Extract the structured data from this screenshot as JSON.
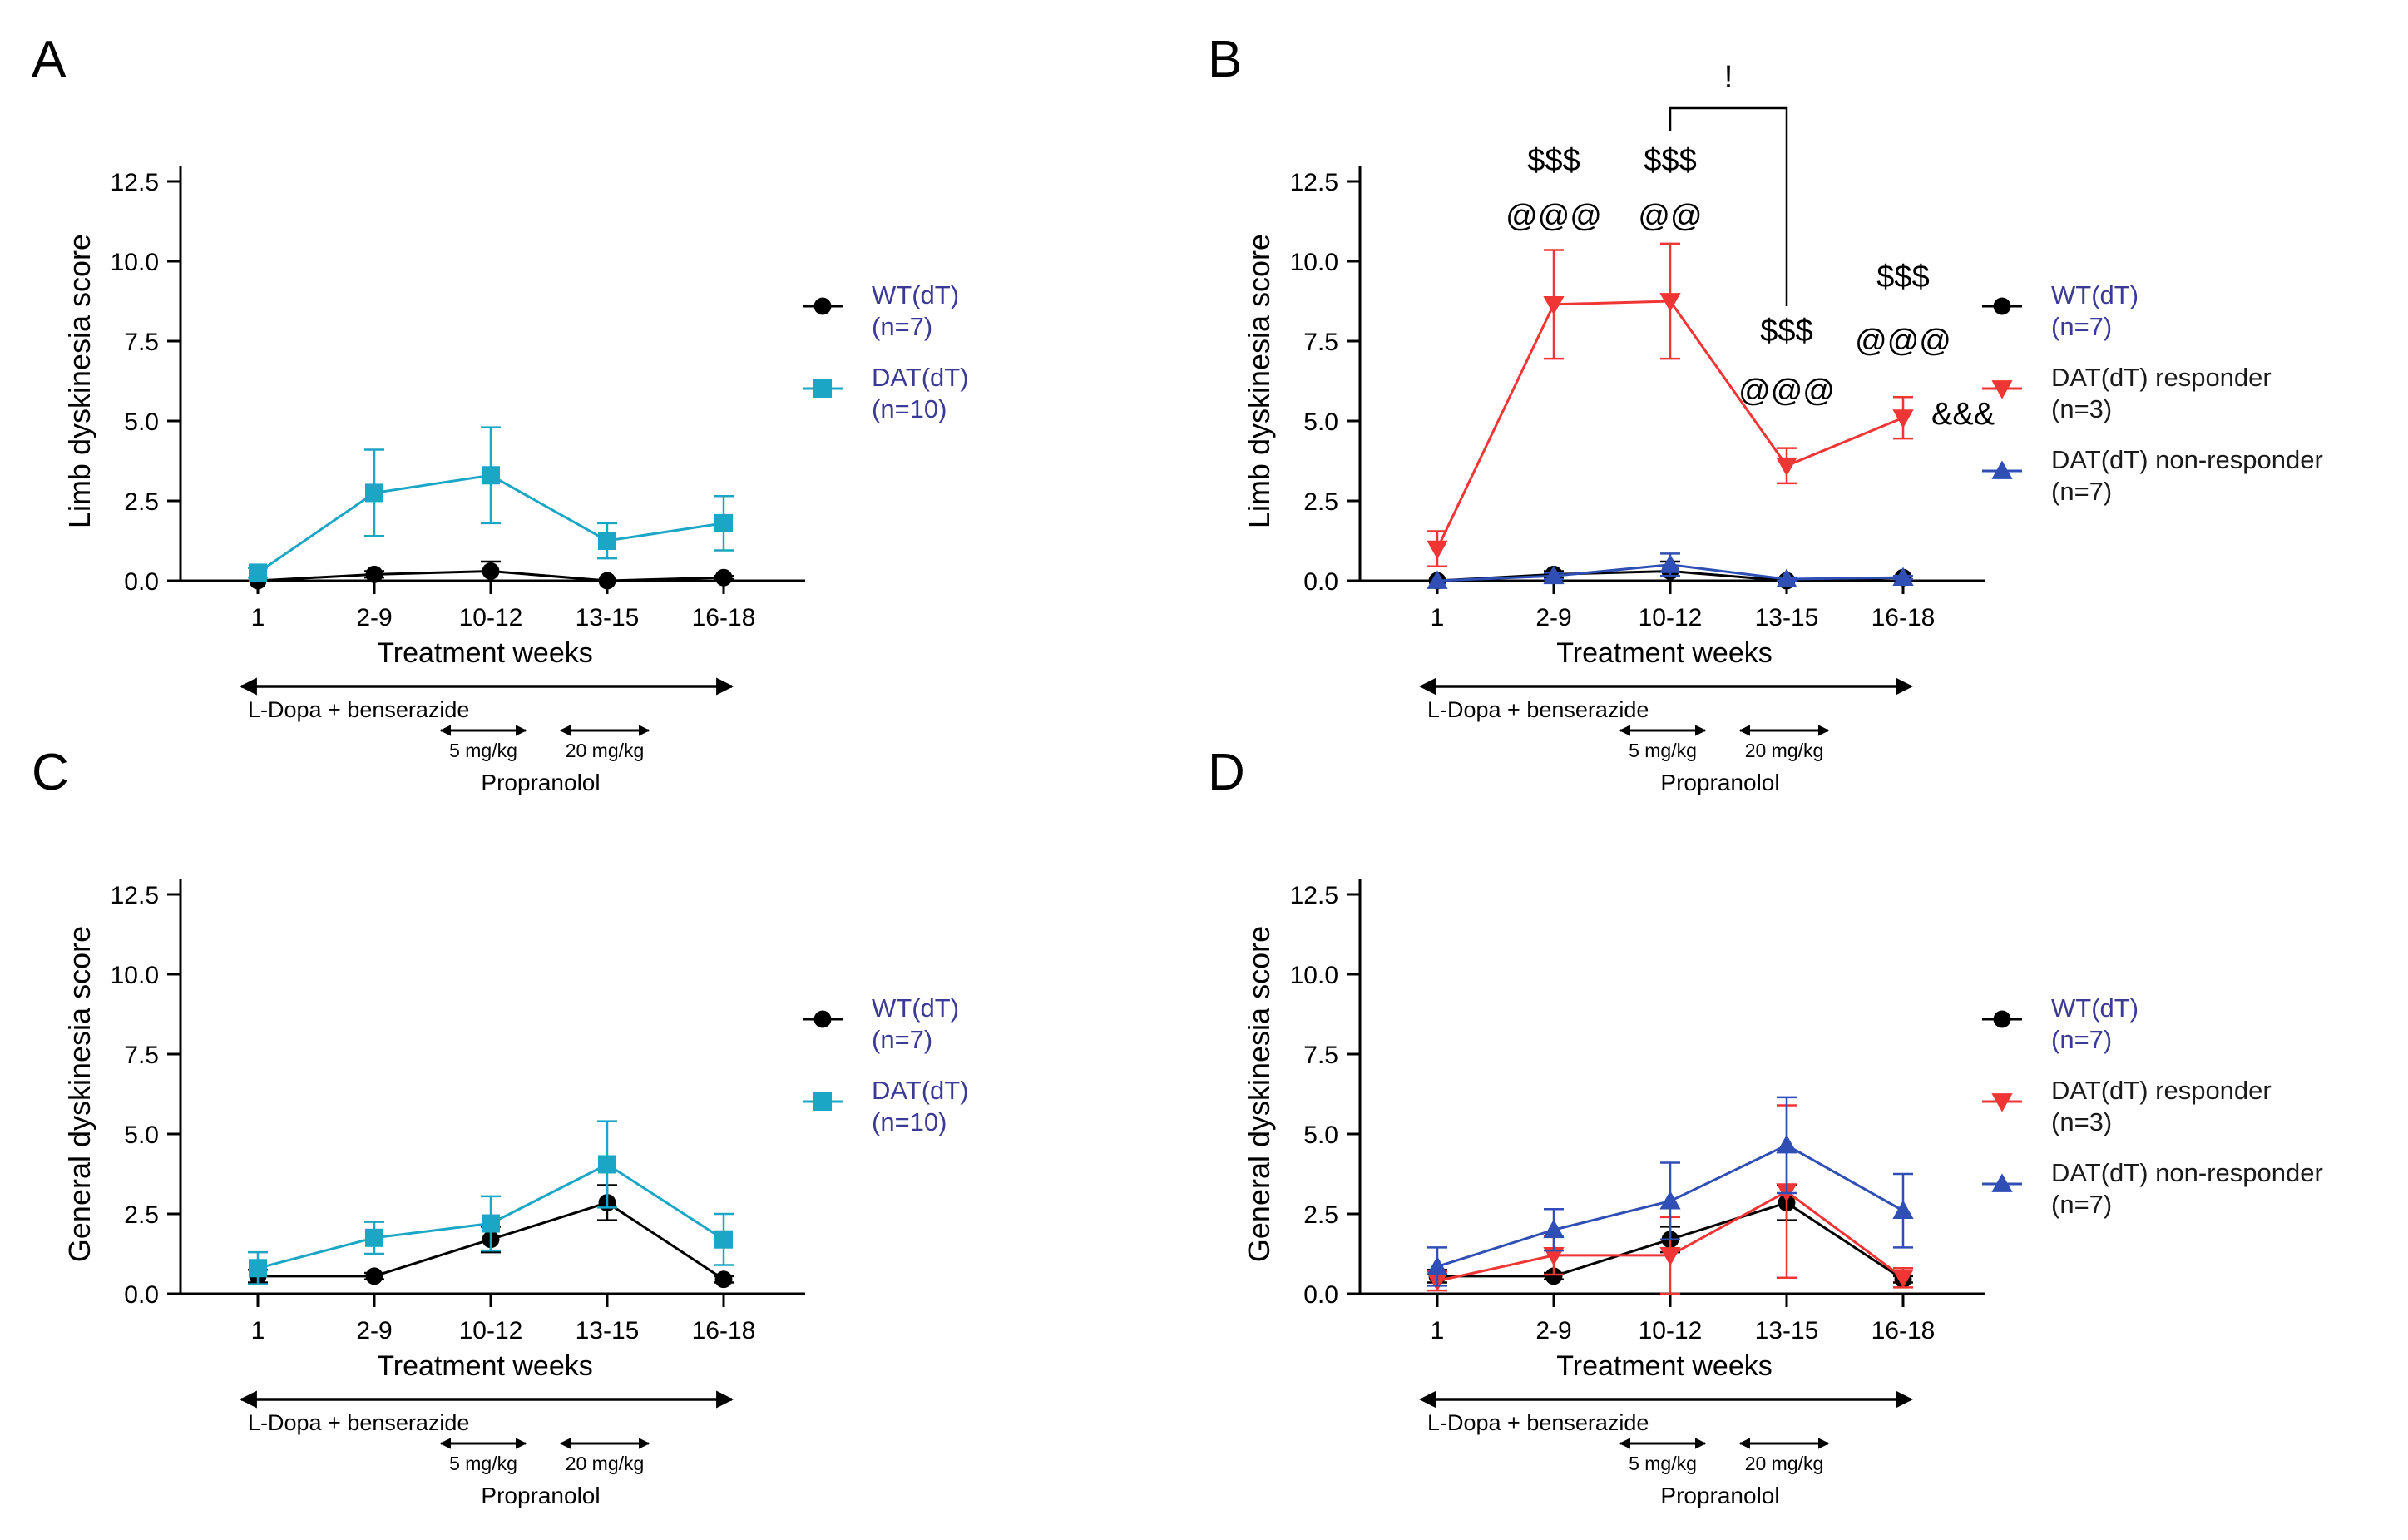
{
  "figure": {
    "x_categories": [
      "1",
      "2-9",
      "10-12",
      "13-15",
      "16-18"
    ],
    "xlabel": "Treatment weeks",
    "yticks": [
      "0.0",
      "2.5",
      "5.0",
      "7.5",
      "10.0",
      "12.5"
    ],
    "treatment": {
      "ldopa_label": "L-Dopa + benserazide",
      "dose1_label": "5 mg/kg",
      "dose2_label": "20 mg/kg",
      "propranolol_label": "Propranolol"
    }
  },
  "legend": {
    "wt_name": "WT(dT)",
    "wt_n": "(n=7)",
    "dat_name": "DAT(dT)",
    "dat_n": "(n=10)",
    "resp_name": "DAT(dT) responder",
    "resp_n": "(n=3)",
    "nonresp_name": "DAT(dT) non-responder",
    "nonresp_n": "(n=7)"
  },
  "colors": {
    "wt": "#000000",
    "dat": "#1aa6c4",
    "responder": "#f03535",
    "non_responder": "#2f4fb5",
    "legend_text_wt": "#3b3b95",
    "legend_text_other": "#1a1a1a"
  },
  "chart_data": [
    {
      "panel": "A",
      "type": "line",
      "ylabel": "Limb dyskinesia score",
      "ylim": [
        0,
        12.5
      ],
      "categories": [
        "1",
        "2-9",
        "10-12",
        "13-15",
        "16-18"
      ],
      "series": [
        {
          "key": "wt",
          "name": "WT(dT) (n=7)",
          "marker": "circle",
          "values": [
            0.0,
            0.2,
            0.3,
            0.0,
            0.1
          ],
          "errors": [
            0.0,
            0.1,
            0.3,
            0.0,
            0.05
          ]
        },
        {
          "key": "dat",
          "name": "DAT(dT) (n=10)",
          "marker": "square",
          "values": [
            0.25,
            2.75,
            3.3,
            1.25,
            1.8
          ],
          "errors": [
            0.15,
            1.35,
            1.5,
            0.55,
            0.85
          ]
        }
      ]
    },
    {
      "panel": "B",
      "type": "line",
      "ylabel": "Limb dyskinesia score",
      "ylim": [
        0,
        12.5
      ],
      "categories": [
        "1",
        "2-9",
        "10-12",
        "13-15",
        "16-18"
      ],
      "series": [
        {
          "key": "wt",
          "name": "WT(dT) (n=7)",
          "marker": "circle",
          "values": [
            0.0,
            0.2,
            0.3,
            0.0,
            0.1
          ],
          "errors": [
            0.0,
            0.1,
            0.3,
            0.0,
            0.05
          ]
        },
        {
          "key": "responder",
          "name": "DAT(dT) responder (n=3)",
          "marker": "triangle-down",
          "values": [
            1.0,
            8.65,
            8.75,
            3.6,
            5.1
          ],
          "errors": [
            0.55,
            1.7,
            1.8,
            0.55,
            0.65
          ]
        },
        {
          "key": "non_responder",
          "name": "DAT(dT) non-responder (n=7)",
          "marker": "triangle-up",
          "values": [
            0.0,
            0.15,
            0.5,
            0.05,
            0.1
          ],
          "errors": [
            0.0,
            0.1,
            0.35,
            0.05,
            0.05
          ]
        }
      ],
      "annotations": [
        {
          "category": "2-9",
          "lines": [
            "$$$",
            "@@@"
          ]
        },
        {
          "category": "10-12",
          "lines": [
            "$$$",
            "@@"
          ]
        },
        {
          "category": "13-15",
          "lines": [
            "$$$",
            "@@@"
          ]
        },
        {
          "category": "16-18",
          "lines": [
            "$$$",
            "@@@",
            "&&&"
          ]
        }
      ],
      "bracket": {
        "from": "10-12",
        "to": "13-15",
        "label": "!"
      }
    },
    {
      "panel": "C",
      "type": "line",
      "ylabel": "General dyskinesia score",
      "ylim": [
        0,
        12.5
      ],
      "categories": [
        "1",
        "2-9",
        "10-12",
        "13-15",
        "16-18"
      ],
      "series": [
        {
          "key": "wt",
          "name": "WT(dT) (n=7)",
          "marker": "circle",
          "values": [
            0.55,
            0.55,
            1.7,
            2.85,
            0.45
          ],
          "errors": [
            0.2,
            0.1,
            0.4,
            0.55,
            0.1
          ]
        },
        {
          "key": "dat",
          "name": "DAT(dT) (n=10)",
          "marker": "square",
          "values": [
            0.8,
            1.75,
            2.2,
            4.05,
            1.7
          ],
          "errors": [
            0.5,
            0.5,
            0.85,
            1.35,
            0.8
          ]
        }
      ]
    },
    {
      "panel": "D",
      "type": "line",
      "ylabel": "General dyskinesia score",
      "ylim": [
        0,
        12.5
      ],
      "categories": [
        "1",
        "2-9",
        "10-12",
        "13-15",
        "16-18"
      ],
      "series": [
        {
          "key": "wt",
          "name": "WT(dT) (n=7)",
          "marker": "circle",
          "values": [
            0.55,
            0.55,
            1.7,
            2.85,
            0.45
          ],
          "errors": [
            0.2,
            0.1,
            0.4,
            0.55,
            0.1
          ]
        },
        {
          "key": "responder",
          "name": "DAT(dT) responder (n=3)",
          "marker": "triangle-down",
          "values": [
            0.4,
            1.2,
            1.2,
            3.2,
            0.5
          ],
          "errors": [
            0.3,
            0.6,
            1.2,
            2.7,
            0.3
          ]
        },
        {
          "key": "non_responder",
          "name": "DAT(dT) non-responder (n=7)",
          "marker": "triangle-up",
          "values": [
            0.85,
            2.0,
            2.9,
            4.65,
            2.6
          ],
          "errors": [
            0.6,
            0.65,
            1.2,
            1.5,
            1.15
          ]
        }
      ]
    }
  ]
}
